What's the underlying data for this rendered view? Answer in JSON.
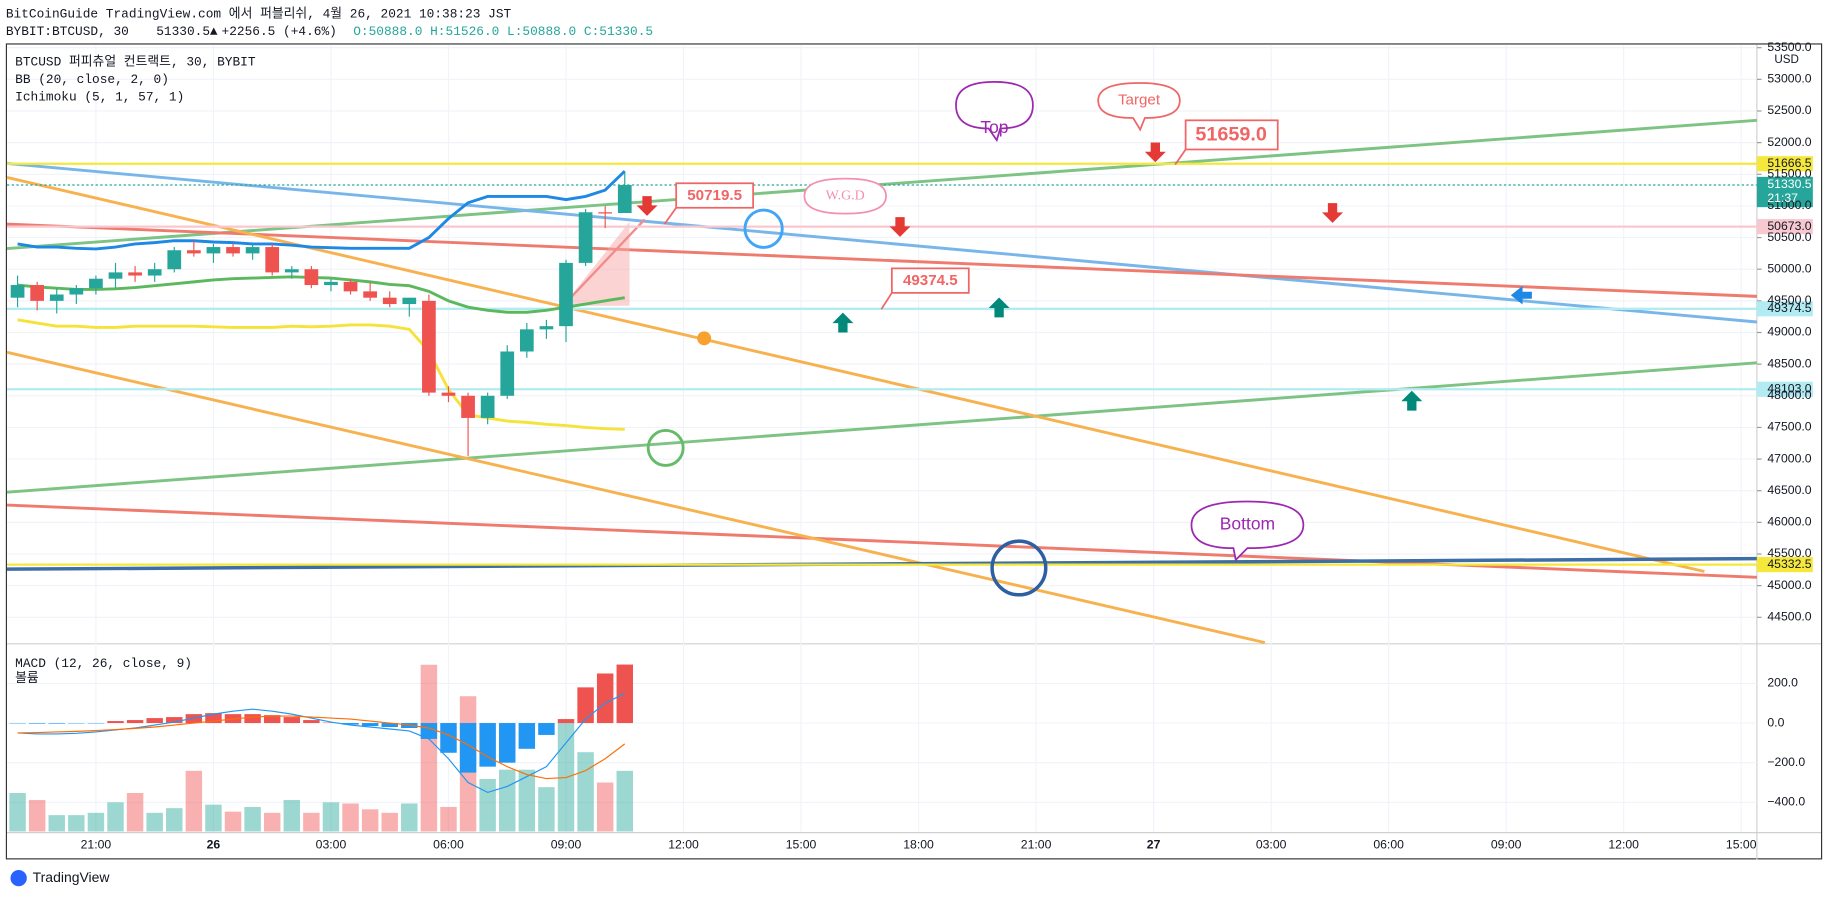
{
  "header": {
    "publisher": "BitCoinGuide TradingView.com 에서 퍼블리쉬, 4월 26, 2021 10:38:23 JST",
    "symbol": "BYBIT:BTCUSD, 30",
    "last": "51330.5",
    "change": "+2256.5 (+4.6%)",
    "ohlc": "O:50888.0 H:51526.0 L:50888.0 C:51330.5"
  },
  "legend": {
    "instrument": "BTCUSD 퍼피츄얼 컨트랙트, 30, BYBIT",
    "bb": "BB (20, close, 2, 0)",
    "ichimoku": "Ichimoku (5, 1, 57, 1)",
    "macd": "MACD (12, 26, close, 9)",
    "volume": "볼륨",
    "currency": "USD"
  },
  "footer": {
    "brand": "TradingView"
  },
  "chart_data": {
    "type": "candlestick",
    "x": [
      0,
      1,
      2,
      3,
      4,
      5,
      6,
      7,
      8,
      9,
      10,
      11,
      12,
      13,
      14,
      15,
      16,
      17,
      18,
      19,
      20,
      21,
      22,
      23,
      24,
      25,
      26,
      27,
      28,
      29,
      30,
      31
    ],
    "open": [
      49550,
      49750,
      49500,
      49600,
      49700,
      49850,
      49950,
      49900,
      50000,
      50300,
      50250,
      50350,
      50250,
      50350,
      49950,
      50000,
      49750,
      49800,
      49650,
      49550,
      49450,
      49500,
      48050,
      48000,
      47650,
      48000,
      48700,
      49050,
      49100,
      50100,
      50900,
      50888
    ],
    "high": [
      49900,
      49800,
      49700,
      49750,
      49900,
      50100,
      50050,
      50100,
      50350,
      50450,
      50400,
      50400,
      50400,
      50400,
      50050,
      50050,
      49850,
      49850,
      49800,
      49650,
      49550,
      49600,
      48150,
      48050,
      48050,
      48800,
      49150,
      49200,
      50150,
      50950,
      51000,
      51526
    ],
    "low": [
      49400,
      49350,
      49300,
      49450,
      49600,
      49700,
      49800,
      49800,
      49950,
      50200,
      50100,
      50200,
      50150,
      49900,
      49850,
      49700,
      49650,
      49600,
      49500,
      49400,
      49250,
      48000,
      47900,
      47050,
      47550,
      47950,
      48600,
      48900,
      48850,
      50050,
      50650,
      50888
    ],
    "close": [
      49750,
      49500,
      49600,
      49700,
      49850,
      49950,
      49900,
      50000,
      50300,
      50250,
      50350,
      50250,
      50350,
      49950,
      50000,
      49750,
      49800,
      49650,
      49550,
      49450,
      49550,
      48050,
      48000,
      47650,
      48000,
      48700,
      49050,
      49100,
      50100,
      50900,
      50880,
      51330.5
    ],
    "up_color": "#26a69a",
    "down_color": "#ef5350",
    "series": [
      {
        "name": "BB upper",
        "color": "#1e88e5",
        "values": [
          50400,
          50350,
          50350,
          50330,
          50320,
          50350,
          50400,
          50420,
          50450,
          50450,
          50430,
          50420,
          50400,
          50400,
          50380,
          50350,
          50340,
          50330,
          50330,
          50330,
          50330,
          50500,
          50800,
          51050,
          51150,
          51150,
          51150,
          51150,
          51100,
          51150,
          51250,
          51550
        ]
      },
      {
        "name": "BB basis",
        "color": "#5cb85c",
        "values": [
          49750,
          49720,
          49700,
          49680,
          49680,
          49690,
          49710,
          49740,
          49770,
          49800,
          49830,
          49850,
          49860,
          49870,
          49880,
          49870,
          49860,
          49830,
          49800,
          49760,
          49740,
          49650,
          49500,
          49400,
          49350,
          49320,
          49320,
          49350,
          49400,
          49450,
          49500,
          49550
        ]
      },
      {
        "name": "BB lower",
        "color": "#f5e23b",
        "values": [
          49200,
          49150,
          49100,
          49100,
          49080,
          49080,
          49100,
          49100,
          49100,
          49100,
          49090,
          49080,
          49080,
          49080,
          49100,
          49090,
          49100,
          49120,
          49120,
          49100,
          49050,
          48700,
          48100,
          47700,
          47650,
          47600,
          47580,
          47550,
          47530,
          47500,
          47480,
          47470
        ]
      }
    ],
    "xlim": [
      -0.54,
      88.8
    ],
    "xticks": [
      {
        "value": 4,
        "label": "21:00"
      },
      {
        "value": 10,
        "label": "26"
      },
      {
        "value": 16,
        "label": "03:00"
      },
      {
        "value": 22,
        "label": "06:00"
      },
      {
        "value": 28,
        "label": "09:00"
      },
      {
        "value": 34,
        "label": "12:00"
      },
      {
        "value": 40,
        "label": "15:00"
      },
      {
        "value": 46,
        "label": "18:00"
      },
      {
        "value": 52,
        "label": "21:00"
      },
      {
        "value": 58,
        "label": "27"
      },
      {
        "value": 64,
        "label": "03:00"
      },
      {
        "value": 70,
        "label": "06:00"
      },
      {
        "value": 76,
        "label": "09:00"
      },
      {
        "value": 82,
        "label": "12:00"
      },
      {
        "value": 88,
        "label": "15:00"
      }
    ],
    "ylim": [
      44100,
      53550
    ],
    "yticks": [
      {
        "value": 44500,
        "label": "44500.0"
      },
      {
        "value": 45000,
        "label": "45000.0"
      },
      {
        "value": 45500,
        "label": "45500.0"
      },
      {
        "value": 46000,
        "label": "46000.0"
      },
      {
        "value": 46500,
        "label": "46500.0"
      },
      {
        "value": 47000,
        "label": "47000.0"
      },
      {
        "value": 47500,
        "label": "47500.0"
      },
      {
        "value": 48000,
        "label": "48000.0"
      },
      {
        "value": 48500,
        "label": "48500.0"
      },
      {
        "value": 49000,
        "label": "49000.0"
      },
      {
        "value": 49500,
        "label": "49500.0"
      },
      {
        "value": 50000,
        "label": "50000.0"
      },
      {
        "value": 50500,
        "label": "50500.0"
      },
      {
        "value": 51000,
        "label": "51000.0"
      },
      {
        "value": 51500,
        "label": "51500.0"
      },
      {
        "value": 52000,
        "label": "52000.0"
      },
      {
        "value": 52500,
        "label": "52500.0"
      },
      {
        "value": 53000,
        "label": "53000.0"
      },
      {
        "value": 53500,
        "label": "53500.0"
      }
    ],
    "grid": true,
    "levels": [
      {
        "value": 51666.5,
        "label": "51666.5",
        "color": "#f5e83b"
      },
      {
        "value": 51330.5,
        "label": "51330.5",
        "color": "#26a69a",
        "countdown": "21:37"
      },
      {
        "value": 50673,
        "label": "50673.0",
        "color": "#f8c8d0"
      },
      {
        "value": 49374.5,
        "label": "49374.5",
        "color": "#b2ebf2"
      },
      {
        "value": 48103,
        "label": "48103.0",
        "color": "#b2ebf2"
      },
      {
        "value": 45332.5,
        "label": "45332.5",
        "color": "#f5e83b"
      }
    ],
    "annotations": {
      "top": "Top",
      "target": "Target",
      "bottom": "Bottom",
      "wgd": "W.G.D",
      "p1": "51659.0",
      "p2": "50719.5",
      "p3": "49374.5"
    },
    "macd": {
      "histogram": [
        -2,
        -3,
        -3,
        -2,
        -2,
        10,
        15,
        25,
        30,
        45,
        50,
        45,
        45,
        40,
        30,
        15,
        2,
        -8,
        -15,
        -20,
        -25,
        -80,
        -150,
        -250,
        -220,
        -200,
        -130,
        -60,
        20,
        180,
        250,
        295
      ],
      "macd_line": [
        -50,
        -55,
        -55,
        -52,
        -45,
        -35,
        -25,
        -10,
        5,
        25,
        45,
        60,
        70,
        60,
        45,
        25,
        5,
        -10,
        -20,
        -30,
        -40,
        -80,
        -180,
        -300,
        -350,
        -320,
        -270,
        -220,
        -100,
        20,
        100,
        150
      ],
      "signal_line": [
        -50,
        -48,
        -45,
        -42,
        -38,
        -33,
        -27,
        -20,
        -10,
        0,
        10,
        20,
        30,
        35,
        35,
        30,
        25,
        20,
        10,
        0,
        -10,
        -25,
        -60,
        -110,
        -170,
        -220,
        -260,
        -280,
        -275,
        -240,
        -180,
        -105
      ],
      "macd_color": "#2196f3",
      "signal_color": "#ff6d00",
      "hist_up": "#ef5350",
      "hist_down": "#2196f3",
      "ylim": [
        -547,
        394
      ],
      "yticks": [
        {
          "value": 200,
          "label": "200.0"
        },
        {
          "value": 0,
          "label": "0.0"
        },
        {
          "value": -200,
          "label": "−200.0"
        },
        {
          "value": -400,
          "label": "−400.0"
        }
      ]
    },
    "volume": {
      "values": [
        33,
        27,
        14,
        14,
        16,
        25,
        33,
        16,
        20,
        52,
        23,
        17,
        21,
        16,
        27,
        16,
        25,
        24,
        19,
        16,
        24,
        143,
        21,
        116,
        45,
        53,
        53,
        38,
        93,
        68,
        42,
        52
      ],
      "vlim": [
        0,
        160
      ]
    }
  }
}
